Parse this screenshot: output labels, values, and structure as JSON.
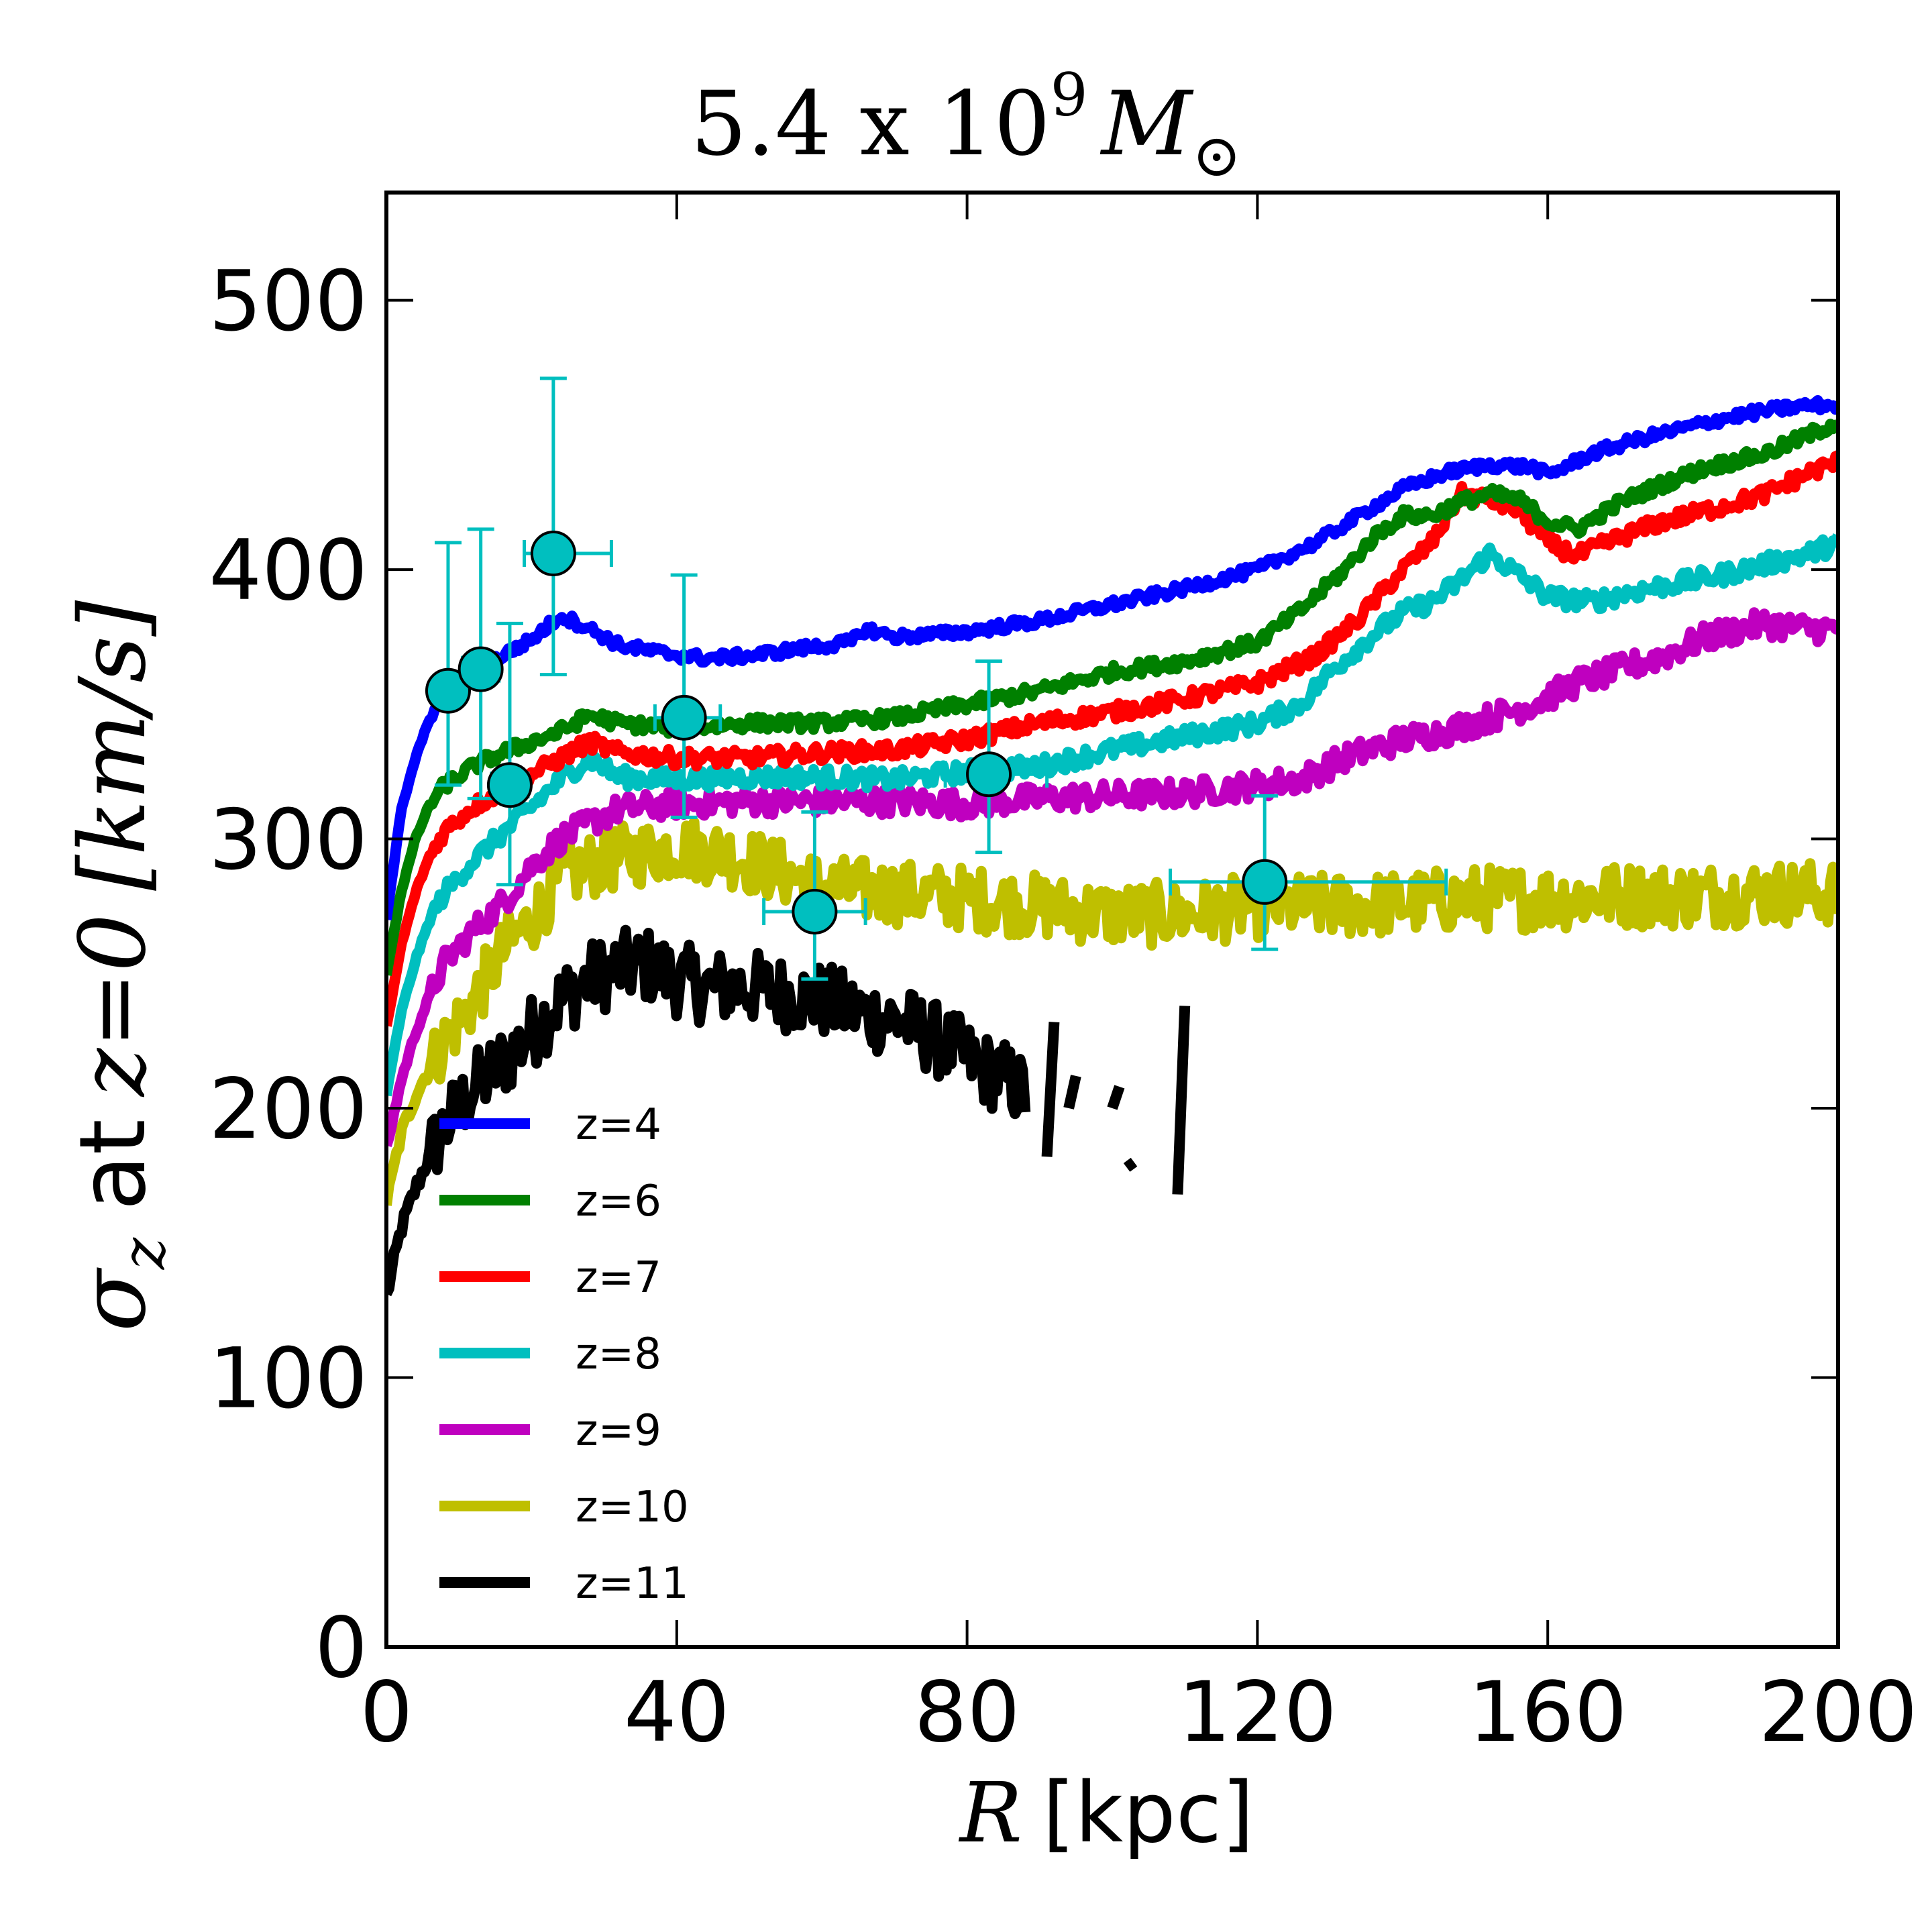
{
  "chart_data": {
    "type": "line",
    "title": {
      "base": "5.4 x 10",
      "exponent": "9",
      "unit": "M",
      "unit_subscript": "⊙"
    },
    "xlabel": {
      "variable": "R",
      "unit": "[kpc]"
    },
    "ylabel": {
      "symbol": "σ",
      "symbol_subscript": "z",
      "middle": "at",
      "condition": "z=0",
      "unit": "[km/s]"
    },
    "xlim": [
      0,
      200
    ],
    "ylim": [
      0,
      540
    ],
    "xticks": [
      0,
      40,
      80,
      120,
      160,
      200
    ],
    "xtick_labels": [
      "0",
      "40",
      "80",
      "120",
      "160",
      "200"
    ],
    "yticks": [
      0,
      100,
      200,
      300,
      400,
      500
    ],
    "ytick_labels": [
      "0",
      "100",
      "200",
      "300",
      "400",
      "500"
    ],
    "legend_position": "lower-left",
    "series": [
      {
        "name": "z=4",
        "color": "#0000ff",
        "noise": 2,
        "segments": [
          [
            [
              0,
              270
            ],
            [
              2,
              310
            ],
            [
              4,
              330
            ],
            [
              6,
              345
            ],
            [
              8,
              354
            ],
            [
              12,
              362
            ],
            [
              16,
              368
            ],
            [
              20,
              374
            ],
            [
              24,
              383
            ],
            [
              28,
              378
            ],
            [
              32,
              372
            ],
            [
              38,
              369
            ],
            [
              44,
              367
            ],
            [
              50,
              368
            ],
            [
              58,
              371
            ],
            [
              64,
              373
            ],
            [
              66,
              378
            ],
            [
              70,
              375
            ],
            [
              76,
              376
            ],
            [
              80,
              377
            ],
            [
              90,
              381
            ],
            [
              100,
              387
            ],
            [
              110,
              393
            ],
            [
              120,
              400
            ],
            [
              128,
              410
            ],
            [
              134,
              420
            ],
            [
              140,
              430
            ],
            [
              146,
              436
            ],
            [
              152,
              439
            ],
            [
              158,
              438
            ],
            [
              160,
              435
            ],
            [
              166,
              443
            ],
            [
              172,
              448
            ],
            [
              178,
              452
            ],
            [
              184,
              456
            ],
            [
              190,
              459
            ],
            [
              196,
              461
            ],
            [
              200,
              461
            ]
          ]
        ]
      },
      {
        "name": "z=6",
        "color": "#008000",
        "noise": 2.5,
        "segments": [
          [
            [
              0,
              250
            ],
            [
              2,
              280
            ],
            [
              4,
              300
            ],
            [
              6,
              313
            ],
            [
              8,
              320
            ],
            [
              12,
              327
            ],
            [
              16,
              332
            ],
            [
              20,
              336
            ],
            [
              24,
              340
            ],
            [
              28,
              346
            ],
            [
              32,
              343
            ],
            [
              40,
              341
            ],
            [
              50,
              343
            ],
            [
              60,
              343
            ],
            [
              70,
              345
            ],
            [
              80,
              350
            ],
            [
              90,
              355
            ],
            [
              100,
              362
            ],
            [
              110,
              366
            ],
            [
              120,
              373
            ],
            [
              126,
              385
            ],
            [
              132,
              400
            ],
            [
              136,
              412
            ],
            [
              140,
              420
            ],
            [
              144,
              420
            ],
            [
              148,
              425
            ],
            [
              152,
              428
            ],
            [
              156,
              426
            ],
            [
              160,
              418
            ],
            [
              164,
              415
            ],
            [
              170,
              425
            ],
            [
              176,
              432
            ],
            [
              182,
              438
            ],
            [
              190,
              443
            ],
            [
              196,
              450
            ],
            [
              200,
              455
            ]
          ]
        ]
      },
      {
        "name": "z=7",
        "color": "#ff0000",
        "noise": 3,
        "segments": [
          [
            [
              0,
              230
            ],
            [
              2,
              260
            ],
            [
              4,
              280
            ],
            [
              6,
              294
            ],
            [
              8,
              303
            ],
            [
              12,
              312
            ],
            [
              16,
              318
            ],
            [
              20,
              324
            ],
            [
              24,
              330
            ],
            [
              28,
              336
            ],
            [
              32,
              332
            ],
            [
              40,
              330
            ],
            [
              50,
              330
            ],
            [
              60,
              332
            ],
            [
              70,
              333
            ],
            [
              80,
              337
            ],
            [
              90,
              343
            ],
            [
              100,
              347
            ],
            [
              110,
              352
            ],
            [
              120,
              358
            ],
            [
              128,
              368
            ],
            [
              134,
              382
            ],
            [
              140,
              400
            ],
            [
              144,
              410
            ],
            [
              148,
              428
            ],
            [
              152,
              426
            ],
            [
              156,
              422
            ],
            [
              160,
              410
            ],
            [
              164,
              405
            ],
            [
              170,
              412
            ],
            [
              176,
              418
            ],
            [
              182,
              422
            ],
            [
              190,
              428
            ],
            [
              196,
              436
            ],
            [
              200,
              440
            ]
          ]
        ]
      },
      {
        "name": "z=8",
        "color": "#00bfbf",
        "noise": 3.5,
        "segments": [
          [
            [
              0,
              205
            ],
            [
              2,
              235
            ],
            [
              4,
              255
            ],
            [
              6,
              270
            ],
            [
              8,
              280
            ],
            [
              12,
              292
            ],
            [
              16,
              302
            ],
            [
              20,
              312
            ],
            [
              24,
              322
            ],
            [
              28,
              330
            ],
            [
              32,
              323
            ],
            [
              40,
              322
            ],
            [
              50,
              323
            ],
            [
              60,
              323
            ],
            [
              70,
              322
            ],
            [
              80,
              325
            ],
            [
              90,
              327
            ],
            [
              100,
              333
            ],
            [
              110,
              338
            ],
            [
              120,
              343
            ],
            [
              126,
              350
            ],
            [
              130,
              362
            ],
            [
              136,
              376
            ],
            [
              140,
              384
            ],
            [
              144,
              388
            ],
            [
              148,
              396
            ],
            [
              152,
              406
            ],
            [
              156,
              398
            ],
            [
              160,
              390
            ],
            [
              166,
              388
            ],
            [
              172,
              392
            ],
            [
              178,
              395
            ],
            [
              184,
              398
            ],
            [
              190,
              402
            ],
            [
              196,
              406
            ],
            [
              200,
              410
            ]
          ]
        ]
      },
      {
        "name": "z=9",
        "color": "#bf00bf",
        "noise": 5,
        "segments": [
          [
            [
              0,
              185
            ],
            [
              2,
              210
            ],
            [
              4,
              228
            ],
            [
              6,
              242
            ],
            [
              8,
              254
            ],
            [
              12,
              266
            ],
            [
              16,
              276
            ],
            [
              20,
              290
            ],
            [
              24,
              300
            ],
            [
              28,
              306
            ],
            [
              32,
              311
            ],
            [
              40,
              313
            ],
            [
              50,
              314
            ],
            [
              60,
              314
            ],
            [
              70,
              314
            ],
            [
              80,
              313
            ],
            [
              90,
              315
            ],
            [
              100,
              316
            ],
            [
              110,
              317
            ],
            [
              120,
              320
            ],
            [
              126,
              322
            ],
            [
              132,
              330
            ],
            [
              140,
              337
            ],
            [
              146,
              340
            ],
            [
              152,
              345
            ],
            [
              158,
              350
            ],
            [
              164,
              358
            ],
            [
              170,
              363
            ],
            [
              176,
              368
            ],
            [
              182,
              375
            ],
            [
              190,
              380
            ],
            [
              196,
              378
            ],
            [
              200,
              378
            ]
          ]
        ]
      },
      {
        "name": "z=10",
        "color": "#bfbf00",
        "noise": 12,
        "segments": [
          [
            [
              0,
              165
            ],
            [
              2,
              190
            ],
            [
              4,
              205
            ],
            [
              6,
              215
            ],
            [
              8,
              225
            ],
            [
              12,
              240
            ],
            [
              16,
              258
            ],
            [
              20,
              270
            ],
            [
              24,
              285
            ],
            [
              28,
              290
            ],
            [
              32,
              293
            ],
            [
              40,
              297
            ],
            [
              46,
              295
            ],
            [
              52,
              290
            ],
            [
              60,
              282
            ],
            [
              70,
              280
            ],
            [
              80,
              278
            ],
            [
              90,
              275
            ],
            [
              100,
              272
            ],
            [
              110,
              272
            ],
            [
              120,
              275
            ],
            [
              130,
              275
            ],
            [
              140,
              276
            ],
            [
              150,
              278
            ],
            [
              160,
              278
            ],
            [
              170,
              279
            ],
            [
              180,
              279
            ],
            [
              190,
              280
            ],
            [
              200,
              280
            ]
          ]
        ]
      },
      {
        "name": "z=11",
        "color": "#000000",
        "noise": 14,
        "segments": [
          [
            [
              0,
              130
            ],
            [
              2,
              155
            ],
            [
              4,
              170
            ],
            [
              6,
              183
            ],
            [
              8,
              193
            ],
            [
              12,
              207
            ],
            [
              16,
              217
            ],
            [
              20,
              228
            ],
            [
              24,
              240
            ],
            [
              28,
              248
            ],
            [
              32,
              252
            ],
            [
              36,
              253
            ],
            [
              40,
              248
            ],
            [
              44,
              245
            ],
            [
              50,
              245
            ],
            [
              56,
              242
            ],
            [
              60,
              240
            ],
            [
              66,
              235
            ],
            [
              70,
              233
            ],
            [
              74,
              228
            ],
            [
              78,
              222
            ],
            [
              82,
              215
            ],
            [
              86,
              210
            ],
            [
              88,
              205
            ]
          ],
          [
            [
              91,
              182
            ],
            [
              92,
              232
            ]
          ],
          [
            [
              94,
              200
            ],
            [
              95,
              212
            ]
          ],
          [
            [
              100,
              200
            ],
            [
              101,
              208
            ]
          ],
          [
            [
              102,
              178
            ],
            [
              103,
              180
            ]
          ],
          [
            [
              109,
              168
            ],
            [
              110,
              238
            ]
          ]
        ]
      }
    ],
    "points": {
      "name": "observations",
      "color": "#00bfbf",
      "data": [
        {
          "x": 8.5,
          "y": 355,
          "xerr": [
            1.5,
            1.5
          ],
          "yerr": [
            35,
            55
          ]
        },
        {
          "x": 13,
          "y": 363,
          "xerr": [
            2.5,
            2.5
          ],
          "yerr": [
            48,
            52
          ]
        },
        {
          "x": 17,
          "y": 320,
          "xerr": [
            2.5,
            2.5
          ],
          "yerr": [
            37,
            60
          ]
        },
        {
          "x": 23,
          "y": 406,
          "xerr": [
            4,
            8
          ],
          "yerr": [
            45,
            65
          ]
        },
        {
          "x": 41,
          "y": 345,
          "xerr": [
            4,
            5
          ],
          "yerr": [
            37,
            53
          ]
        },
        {
          "x": 59,
          "y": 273,
          "xerr": [
            7,
            7
          ],
          "yerr": [
            25,
            37
          ]
        },
        {
          "x": 83,
          "y": 324,
          "xerr": [
            6,
            8
          ],
          "yerr": [
            29,
            42
          ]
        },
        {
          "x": 121,
          "y": 284,
          "xerr": [
            13,
            25
          ],
          "yerr": [
            25,
            32
          ]
        }
      ]
    }
  }
}
